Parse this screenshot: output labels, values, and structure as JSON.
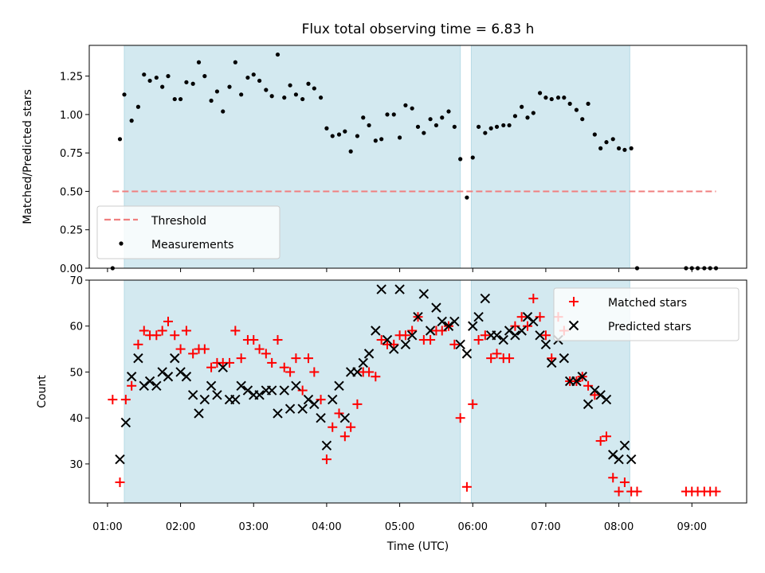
{
  "chart_data": [
    {
      "type": "scatter",
      "title": "Flux total observing time = 6.83 h",
      "xlabel": "",
      "ylabel": "Matched/Predicted stars",
      "x_unit": "hours UTC",
      "xlim": [
        0.75,
        9.75
      ],
      "ylim": [
        0,
        1.45
      ],
      "yticks": [
        "0.00",
        "0.25",
        "0.50",
        "0.75",
        "1.00",
        "1.25"
      ],
      "shaded_intervals": [
        [
          1.23,
          5.83
        ],
        [
          5.98,
          8.15
        ]
      ],
      "shade_color": "#d3e9f0",
      "threshold": {
        "name": "Threshold",
        "y": 0.5,
        "x_range": [
          1.07,
          9.33
        ],
        "color": "#f07f7f"
      },
      "series": [
        {
          "name": "Measurements",
          "color": "#000000",
          "x": [
            1.07,
            1.17,
            1.23,
            1.33,
            1.42,
            1.5,
            1.58,
            1.67,
            1.75,
            1.83,
            1.92,
            2.0,
            2.08,
            2.17,
            2.25,
            2.33,
            2.42,
            2.5,
            2.58,
            2.67,
            2.75,
            2.83,
            2.92,
            3.0,
            3.08,
            3.17,
            3.25,
            3.33,
            3.42,
            3.5,
            3.58,
            3.67,
            3.75,
            3.83,
            3.92,
            4.0,
            4.08,
            4.17,
            4.25,
            4.33,
            4.42,
            4.5,
            4.58,
            4.67,
            4.75,
            4.83,
            4.92,
            5.0,
            5.08,
            5.17,
            5.25,
            5.33,
            5.42,
            5.5,
            5.58,
            5.67,
            5.75,
            5.83,
            5.92,
            6.0,
            6.08,
            6.17,
            6.25,
            6.33,
            6.42,
            6.5,
            6.58,
            6.67,
            6.75,
            6.83,
            6.92,
            7.0,
            7.08,
            7.17,
            7.25,
            7.33,
            7.42,
            7.5,
            7.58,
            7.67,
            7.75,
            7.83,
            7.92,
            8.0,
            8.08,
            8.17,
            8.25,
            8.92,
            9.0,
            9.08,
            9.17,
            9.25,
            9.33
          ],
          "values": [
            0.0,
            0.84,
            1.13,
            0.96,
            1.05,
            1.26,
            1.22,
            1.24,
            1.18,
            1.25,
            1.1,
            1.1,
            1.21,
            1.2,
            1.34,
            1.25,
            1.09,
            1.15,
            1.02,
            1.18,
            1.34,
            1.13,
            1.24,
            1.26,
            1.22,
            1.16,
            1.12,
            1.39,
            1.11,
            1.19,
            1.13,
            1.1,
            1.2,
            1.17,
            1.11,
            0.91,
            0.86,
            0.87,
            0.89,
            0.76,
            0.86,
            0.98,
            0.93,
            0.83,
            0.84,
            1.0,
            1.0,
            0.85,
            1.06,
            1.04,
            0.92,
            0.88,
            0.97,
            0.93,
            0.98,
            1.02,
            0.92,
            0.71,
            0.46,
            0.72,
            0.92,
            0.88,
            0.91,
            0.92,
            0.93,
            0.93,
            0.99,
            1.05,
            0.98,
            1.01,
            1.14,
            1.11,
            1.1,
            1.11,
            1.11,
            1.07,
            1.03,
            0.97,
            1.07,
            0.87,
            0.78,
            0.82,
            0.84,
            0.78,
            0.77,
            0.78,
            0.0,
            0.0,
            0.0,
            0.0,
            0.0,
            0.0,
            0.0
          ]
        }
      ],
      "legend": {
        "location": "lower-left",
        "entries": [
          "Threshold",
          "Measurements"
        ]
      }
    },
    {
      "type": "scatter",
      "title": "",
      "xlabel": "Time (UTC)",
      "ylabel": "Count",
      "x_unit": "hours UTC",
      "xlim": [
        0.75,
        9.75
      ],
      "ylim": [
        21.5,
        70
      ],
      "yticks": [
        30,
        40,
        50,
        60,
        70
      ],
      "xticks": [
        1,
        2,
        3,
        4,
        5,
        6,
        7,
        8,
        9
      ],
      "xtick_labels": [
        "01:00",
        "02:00",
        "03:00",
        "04:00",
        "05:00",
        "06:00",
        "07:00",
        "08:00",
        "09:00"
      ],
      "shaded_intervals": [
        [
          1.23,
          5.83
        ],
        [
          5.98,
          8.15
        ]
      ],
      "shade_color": "#d3e9f0",
      "series": [
        {
          "name": "Matched stars",
          "marker": "plus",
          "color": "#ff0000",
          "x": [
            1.07,
            1.17,
            1.25,
            1.33,
            1.42,
            1.5,
            1.58,
            1.67,
            1.75,
            1.83,
            1.92,
            2.0,
            2.08,
            2.17,
            2.25,
            2.33,
            2.42,
            2.5,
            2.58,
            2.67,
            2.75,
            2.83,
            2.92,
            3.0,
            3.08,
            3.17,
            3.25,
            3.33,
            3.42,
            3.5,
            3.58,
            3.67,
            3.75,
            3.83,
            3.92,
            4.0,
            4.08,
            4.17,
            4.25,
            4.33,
            4.42,
            4.5,
            4.58,
            4.67,
            4.75,
            4.83,
            4.92,
            5.0,
            5.08,
            5.17,
            5.25,
            5.33,
            5.42,
            5.5,
            5.58,
            5.67,
            5.75,
            5.83,
            5.92,
            6.0,
            6.08,
            6.17,
            6.25,
            6.33,
            6.42,
            6.5,
            6.58,
            6.67,
            6.75,
            6.83,
            6.92,
            7.0,
            7.08,
            7.17,
            7.25,
            7.33,
            7.42,
            7.5,
            7.58,
            7.67,
            7.75,
            7.83,
            7.92,
            8.0,
            8.08,
            8.17,
            8.25,
            8.92,
            9.0,
            9.08,
            9.17,
            9.25,
            9.33
          ],
          "values": [
            44,
            26,
            44,
            47,
            56,
            59,
            58,
            58,
            59,
            61,
            58,
            55,
            59,
            54,
            55,
            55,
            51,
            52,
            52,
            52,
            59,
            53,
            57,
            57,
            55,
            54,
            52,
            57,
            51,
            50,
            53,
            46,
            53,
            50,
            44,
            31,
            38,
            41,
            36,
            38,
            43,
            50,
            50,
            49,
            57,
            56,
            56,
            58,
            58,
            59,
            62,
            57,
            57,
            59,
            59,
            60,
            56,
            40,
            25,
            43,
            57,
            58,
            53,
            54,
            53,
            53,
            60,
            62,
            60,
            66,
            62,
            58,
            53,
            62,
            59,
            48,
            48,
            49,
            47,
            45,
            35,
            36,
            27,
            24,
            26,
            24,
            24,
            24,
            24,
            24,
            24,
            24,
            24
          ]
        },
        {
          "name": "Predicted stars",
          "marker": "x",
          "color": "#000000",
          "x": [
            1.17,
            1.25,
            1.33,
            1.42,
            1.5,
            1.58,
            1.67,
            1.75,
            1.83,
            1.92,
            2.0,
            2.08,
            2.17,
            2.25,
            2.33,
            2.42,
            2.5,
            2.58,
            2.67,
            2.75,
            2.83,
            2.92,
            3.0,
            3.08,
            3.17,
            3.25,
            3.33,
            3.42,
            3.5,
            3.58,
            3.67,
            3.75,
            3.83,
            3.92,
            4.0,
            4.08,
            4.17,
            4.25,
            4.33,
            4.42,
            4.5,
            4.58,
            4.67,
            4.75,
            4.83,
            4.92,
            5.0,
            5.08,
            5.17,
            5.25,
            5.33,
            5.42,
            5.5,
            5.58,
            5.67,
            5.75,
            5.83,
            5.92,
            6.0,
            6.08,
            6.17,
            6.25,
            6.33,
            6.42,
            6.5,
            6.58,
            6.67,
            6.75,
            6.83,
            6.92,
            7.0,
            7.08,
            7.17,
            7.25,
            7.33,
            7.42,
            7.5,
            7.58,
            7.67,
            7.75,
            7.83,
            7.92,
            8.0,
            8.08,
            8.17
          ],
          "values": [
            31,
            39,
            49,
            53,
            47,
            48,
            47,
            50,
            49,
            53,
            50,
            49,
            45,
            41,
            44,
            47,
            45,
            51,
            44,
            44,
            47,
            46,
            45,
            45,
            46,
            46,
            41,
            46,
            42,
            47,
            42,
            44,
            43,
            40,
            34,
            44,
            47,
            40,
            50,
            50,
            52,
            54,
            59,
            68,
            57,
            55,
            68,
            56,
            58,
            62,
            67,
            59,
            64,
            61,
            60,
            61,
            56,
            54,
            60,
            62,
            66,
            58,
            58,
            57,
            59,
            58,
            59,
            62,
            61,
            58,
            56,
            52,
            57,
            53,
            48,
            48,
            49,
            43,
            46,
            45,
            44,
            32,
            31,
            34,
            31
          ]
        }
      ],
      "legend": {
        "location": "upper-right",
        "entries": [
          "Matched stars",
          "Predicted stars"
        ]
      }
    }
  ]
}
